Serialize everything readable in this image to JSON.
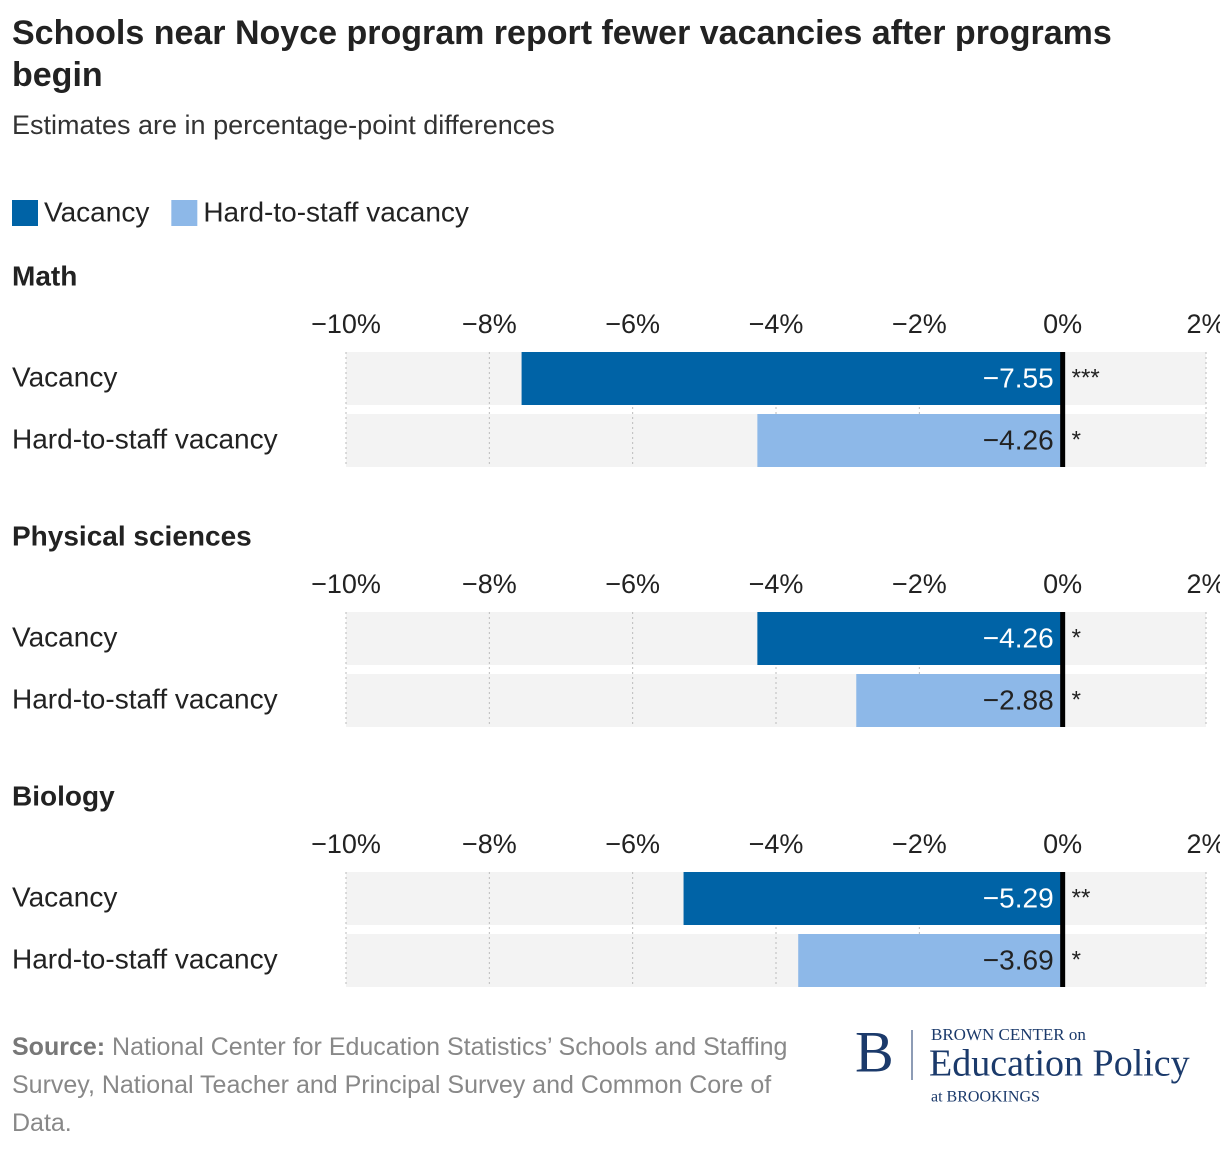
{
  "title": "Schools near Noyce program report fewer vacancies after programs begin",
  "subtitle": "Estimates are in percentage-point differences",
  "legend": [
    {
      "name": "Vacancy",
      "color": "#0063a6"
    },
    {
      "name": "Hard-to-staff vacancy",
      "color": "#8db8e8"
    }
  ],
  "chart_data": [
    {
      "type": "bar",
      "orientation": "horizontal",
      "title": "Math",
      "categories": [
        "Vacancy",
        "Hard-to-staff vacancy"
      ],
      "values": [
        -7.55,
        -4.26
      ],
      "value_labels": [
        "−7.55",
        "−4.26"
      ],
      "significance": [
        "***",
        "*"
      ],
      "colors": [
        "#0063a6",
        "#8db8e8"
      ],
      "xlim": [
        -10,
        2
      ],
      "xticks": [
        {
          "value": -10,
          "label": "−10%"
        },
        {
          "value": -8,
          "label": "−8%"
        },
        {
          "value": -6,
          "label": "−6%"
        },
        {
          "value": -4,
          "label": "−4%"
        },
        {
          "value": -2,
          "label": "−2%"
        },
        {
          "value": 0,
          "label": "0%"
        },
        {
          "value": 2,
          "label": "2%"
        }
      ],
      "grid": true
    },
    {
      "type": "bar",
      "orientation": "horizontal",
      "title": "Physical sciences",
      "categories": [
        "Vacancy",
        "Hard-to-staff vacancy"
      ],
      "values": [
        -4.26,
        -2.88
      ],
      "value_labels": [
        "−4.26",
        "−2.88"
      ],
      "significance": [
        "*",
        "*"
      ],
      "colors": [
        "#0063a6",
        "#8db8e8"
      ],
      "xlim": [
        -10,
        2
      ],
      "xticks": [
        {
          "value": -10,
          "label": "−10%"
        },
        {
          "value": -8,
          "label": "−8%"
        },
        {
          "value": -6,
          "label": "−6%"
        },
        {
          "value": -4,
          "label": "−4%"
        },
        {
          "value": -2,
          "label": "−2%"
        },
        {
          "value": 0,
          "label": "0%"
        },
        {
          "value": 2,
          "label": "2%"
        }
      ],
      "grid": true
    },
    {
      "type": "bar",
      "orientation": "horizontal",
      "title": "Biology",
      "categories": [
        "Vacancy",
        "Hard-to-staff vacancy"
      ],
      "values": [
        -5.29,
        -3.69
      ],
      "value_labels": [
        "−5.29",
        "−3.69"
      ],
      "significance": [
        "**",
        "*"
      ],
      "colors": [
        "#0063a6",
        "#8db8e8"
      ],
      "xlim": [
        -10,
        2
      ],
      "xticks": [
        {
          "value": -10,
          "label": "−10%"
        },
        {
          "value": -8,
          "label": "−8%"
        },
        {
          "value": -6,
          "label": "−6%"
        },
        {
          "value": -4,
          "label": "−4%"
        },
        {
          "value": -2,
          "label": "−2%"
        },
        {
          "value": 0,
          "label": "0%"
        },
        {
          "value": 2,
          "label": "2%"
        }
      ],
      "grid": true
    }
  ],
  "source": {
    "label": "Source:",
    "text": "National Center for Education Statistics’ Schools and Staffing Survey, National Teacher and Principal Survey and Common Core of Data."
  },
  "logo": {
    "mark": "B",
    "line1": "BROWN CENTER on",
    "line2": "Education Policy",
    "line3": "at BROOKINGS"
  }
}
